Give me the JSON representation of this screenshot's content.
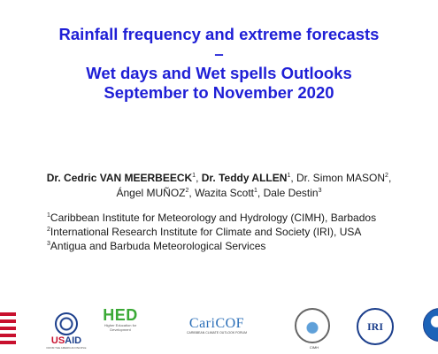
{
  "title": {
    "line1": "Rainfall frequency and extreme forecasts",
    "line2": "–",
    "line3": "Wet days and Wet spells Outlooks",
    "line4": "September to November 2020"
  },
  "authors": [
    {
      "name": "Dr. Cedric VAN MEERBEECK",
      "sup": "1",
      "bold": true,
      "sep": ", "
    },
    {
      "name": "Dr. Teddy ALLEN",
      "sup": "1",
      "bold": true,
      "sep": ", "
    },
    {
      "name": "Dr. Simon MASON",
      "sup": "2",
      "bold": false,
      "sep": ","
    },
    {
      "name": "Ángel MUÑOZ",
      "sup": "2",
      "bold": false,
      "sep": ", "
    },
    {
      "name": "Wazita Scott",
      "sup": "1",
      "bold": false,
      "sep": ", "
    },
    {
      "name": "Dale Destin",
      "sup": "3",
      "bold": false,
      "sep": ""
    }
  ],
  "affiliations": [
    {
      "sup": "1",
      "text": "Caribbean Institute for Meteorology and Hydrology (CIMH), Barbados"
    },
    {
      "sup": "2",
      "text": "International Research Institute for Climate and Society (IRI), USA"
    },
    {
      "sup": "3",
      "text": "Antigua and Barbuda Meteorological Services"
    }
  ],
  "logos": {
    "usaid_word_a": "US",
    "usaid_word_b": "AID",
    "usaid_tagline": "FROM THE AMERICAN PEOPLE",
    "hed_big": "HED",
    "hed_sub": "Higher Education for Development",
    "caricof_big": "CariCOF",
    "caricof_sub": "CARIBBEAN CLIMATE OUTLOOK FORUM",
    "cimh_label": "CIMH",
    "iri_text": "IRI"
  },
  "colors": {
    "title": "#1f1fd6",
    "text": "#1a1a1a",
    "flag_red": "#c8102e",
    "usaid_blue": "#1c3f8c",
    "hed_green": "#3aa935",
    "caricof_blue": "#2b6fb8"
  }
}
